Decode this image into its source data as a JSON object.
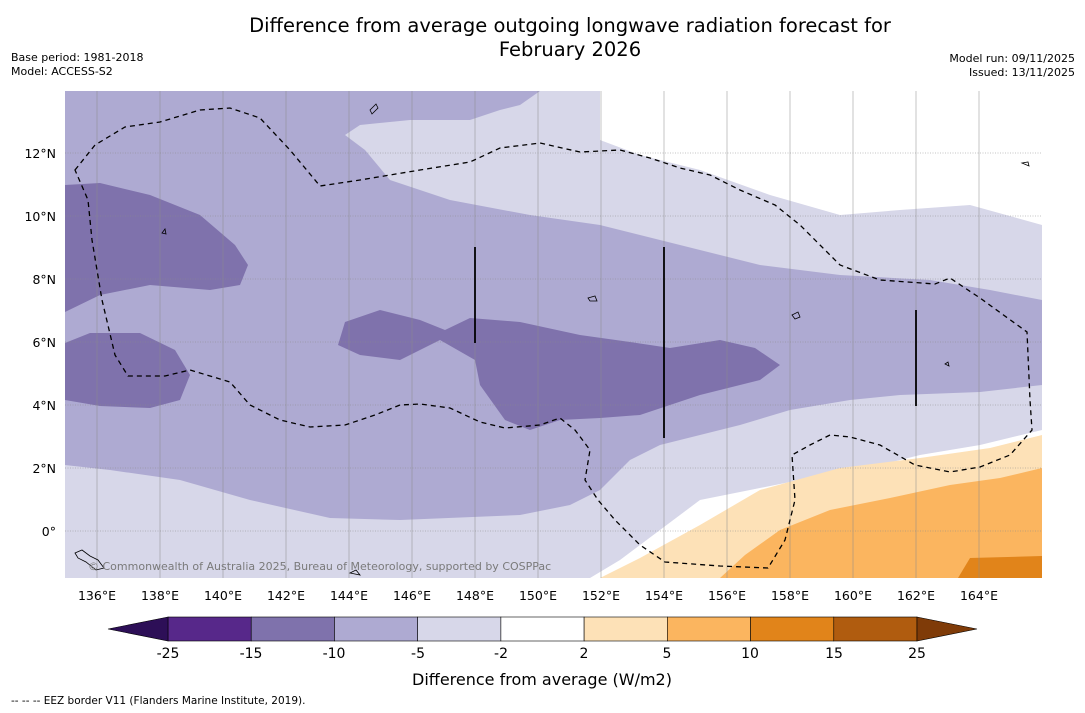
{
  "title_line1": "Difference from average outgoing longwave radiation forecast for",
  "title_line2": "February 2026",
  "meta": {
    "base_period": "Base period: 1981-2018",
    "model": "Model: ACCESS-S2",
    "model_run": "Model run: 09/11/2025",
    "issued": "Issued: 13/11/2025"
  },
  "axes": {
    "lon_labels": [
      "136°E",
      "138°E",
      "140°E",
      "142°E",
      "144°E",
      "146°E",
      "148°E",
      "150°E",
      "152°E",
      "154°E",
      "156°E",
      "158°E",
      "160°E",
      "162°E",
      "164°E"
    ],
    "lat_labels": [
      "12°N",
      "10°N",
      "8°N",
      "6°N",
      "4°N",
      "2°N",
      "0°"
    ]
  },
  "copyright": "© Commonwealth of Australia 2025, Bureau of Meteorology, supported by COSPPac",
  "colorbar": {
    "label": "Difference from average (W/m2)",
    "ticks": [
      "-25",
      "-15",
      "-10",
      "-5",
      "-2",
      "2",
      "5",
      "10",
      "15",
      "25"
    ],
    "colors": {
      "below": "#2d0f57",
      "bins": [
        "#57288a",
        "#7f72ac",
        "#aeaad2",
        "#d7d7e9",
        "#ffffff",
        "#fde1b7",
        "#fbb55f",
        "#e1841a",
        "#b05c0f"
      ],
      "above": "#7f3b08"
    }
  },
  "footnote": "--  --  -- EEZ border V11 (Flanders Marine Institute, 2019)."
}
